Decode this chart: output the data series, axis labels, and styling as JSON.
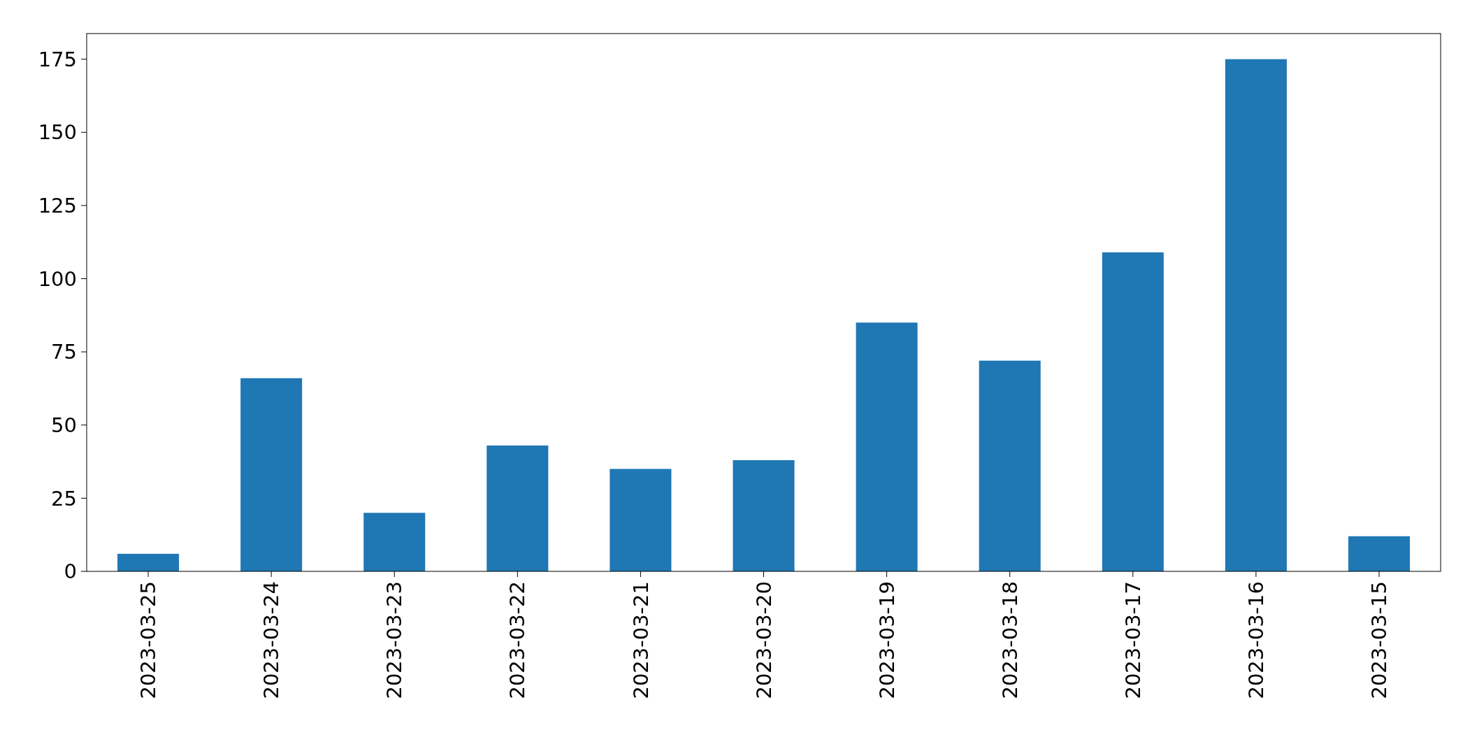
{
  "chart_data": {
    "type": "bar",
    "categories": [
      "2023-03-25",
      "2023-03-24",
      "2023-03-23",
      "2023-03-22",
      "2023-03-21",
      "2023-03-20",
      "2023-03-19",
      "2023-03-18",
      "2023-03-17",
      "2023-03-16",
      "2023-03-15"
    ],
    "values": [
      6,
      66,
      20,
      43,
      35,
      38,
      85,
      72,
      109,
      175,
      12
    ],
    "color": "#1f77b4",
    "ylim": [
      0,
      183.75
    ],
    "yticks": [
      0,
      25,
      50,
      75,
      100,
      125,
      150,
      175
    ],
    "grid": false
  }
}
